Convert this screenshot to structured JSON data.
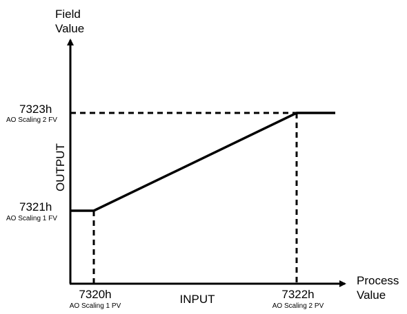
{
  "y_axis": {
    "title_line1": "Field",
    "title_line2": "Value",
    "name": "OUTPUT"
  },
  "x_axis": {
    "title_line1": "Process",
    "title_line2": "Value",
    "name": "INPUT"
  },
  "y_levels": [
    {
      "code": "7323h",
      "desc": "AO Scaling 2 FV"
    },
    {
      "code": "7321h",
      "desc": "AO Scaling 1 FV"
    }
  ],
  "x_levels": [
    {
      "code": "7320h",
      "desc": "AO Scaling 1 PV"
    },
    {
      "code": "7322h",
      "desc": "AO Scaling 2 PV"
    }
  ],
  "colors": {
    "line": "#000000",
    "background": "#ffffff"
  }
}
